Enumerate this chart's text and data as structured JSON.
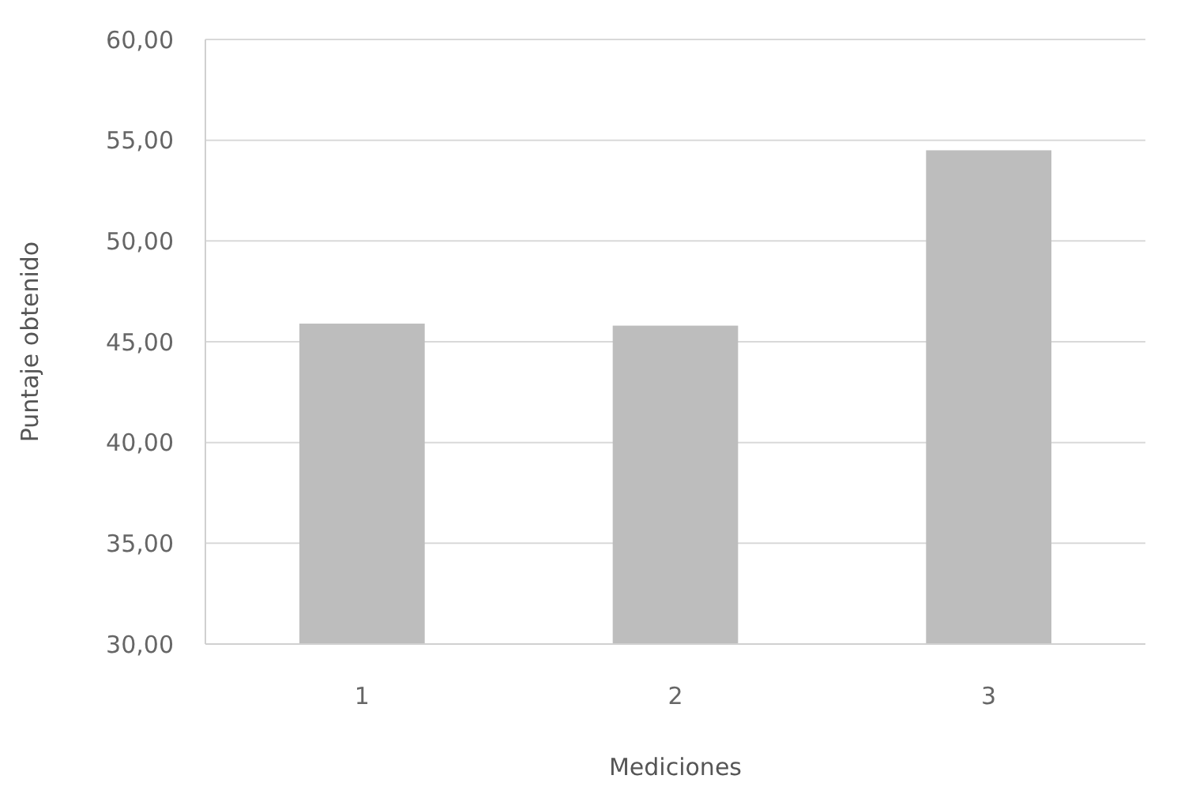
{
  "chart_data": {
    "type": "bar",
    "xlabel": "Mediciones",
    "ylabel": "Puntaje obtenido",
    "categories": [
      "1",
      "2",
      "3"
    ],
    "values": [
      45.9,
      45.8,
      54.5
    ],
    "color": "#bdbdbd",
    "ylim": [
      30,
      60
    ],
    "yticks": [
      {
        "value": 30,
        "label": "30,00"
      },
      {
        "value": 35,
        "label": "35,00"
      },
      {
        "value": 40,
        "label": "40,00"
      },
      {
        "value": 45,
        "label": "45,00"
      },
      {
        "value": 50,
        "label": "50,00"
      },
      {
        "value": 55,
        "label": "55,00"
      },
      {
        "value": 60,
        "label": "60,00"
      }
    ],
    "grid": true
  }
}
